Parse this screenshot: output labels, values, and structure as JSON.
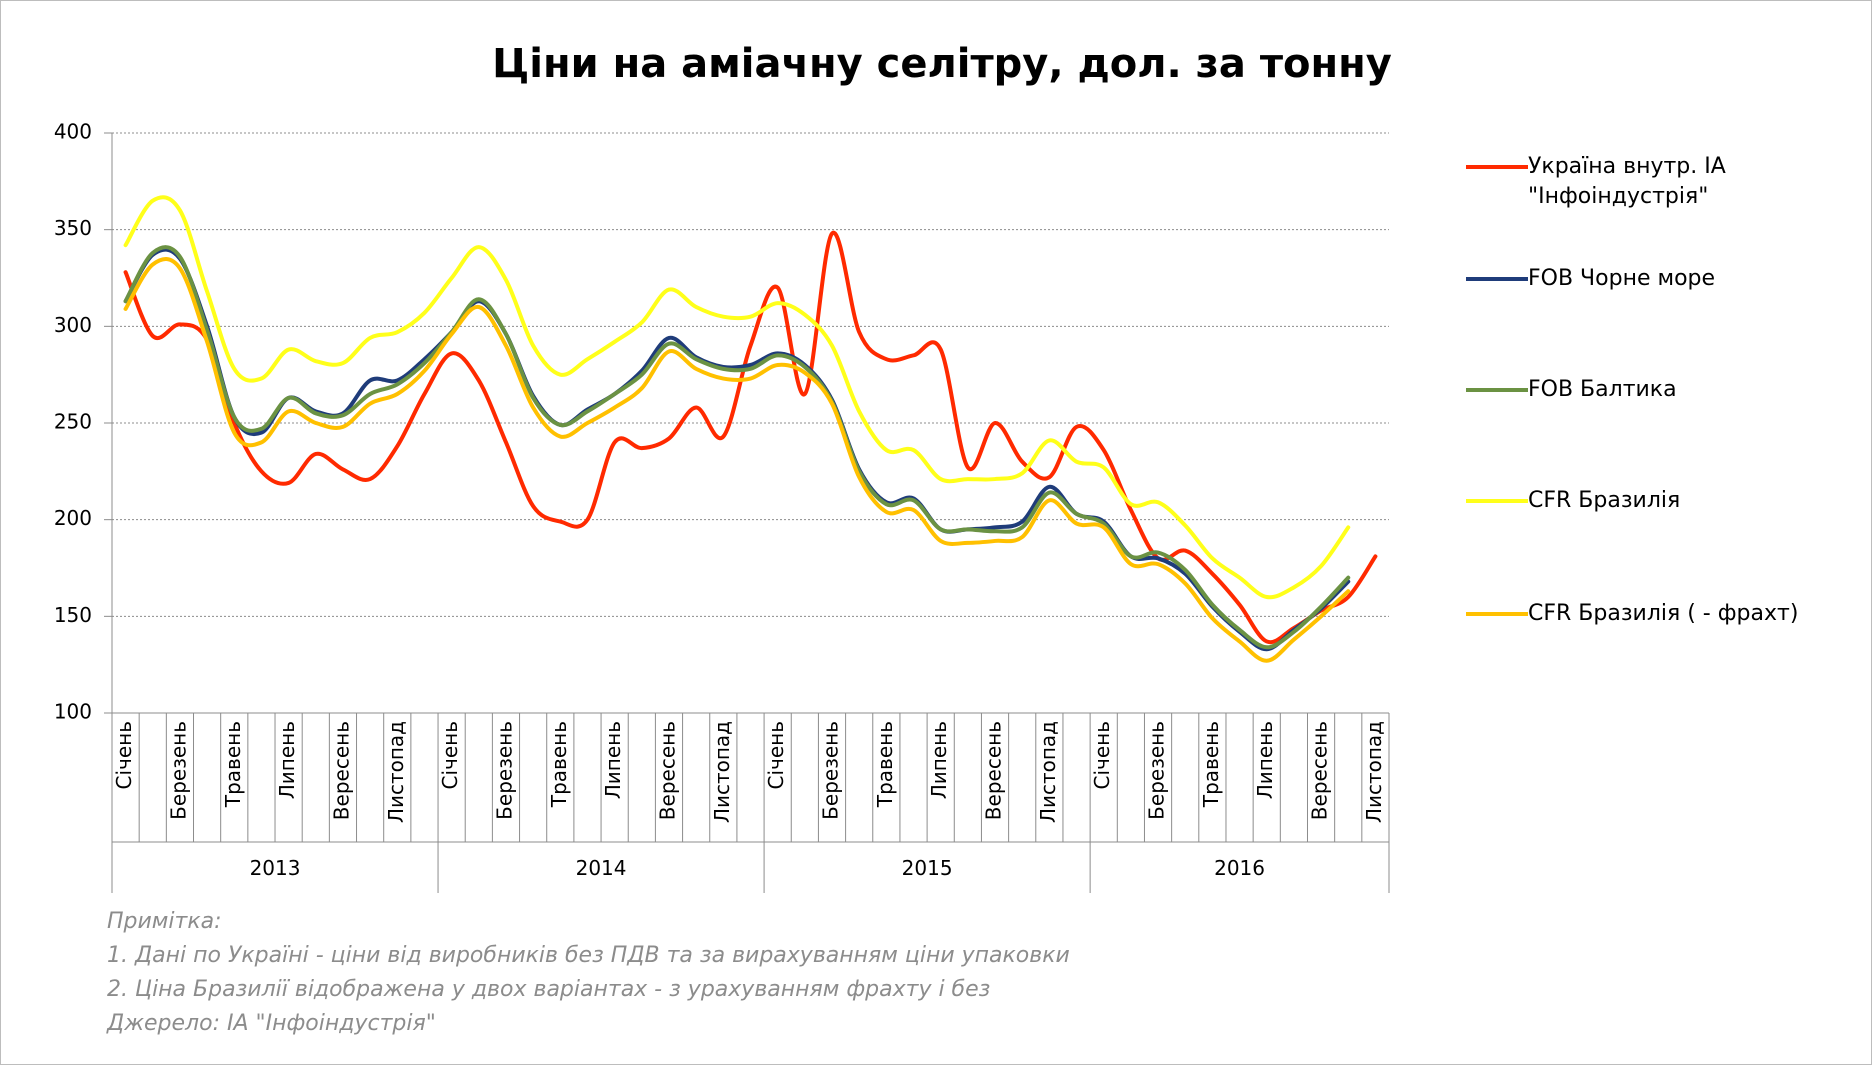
{
  "chart_data": {
    "type": "line",
    "title": "Ціни на аміачну селітру, дол. за тонну",
    "categories": [
      "Січень",
      null,
      "Березень",
      null,
      "Травень",
      null,
      "Липень",
      null,
      "Вересень",
      null,
      "Листопад",
      null,
      "Січень",
      null,
      "Березень",
      null,
      "Травень",
      null,
      "Липень",
      null,
      "Вересень",
      null,
      "Листопад",
      null,
      "Січень",
      null,
      "Березень",
      null,
      "Травень",
      null,
      "Липень",
      null,
      "Вересень",
      null,
      "Листопад",
      null,
      "Січень",
      null,
      "Березень",
      null,
      "Травень",
      null,
      "Липень",
      null,
      "Вересень",
      null,
      "Листопад"
    ],
    "years": [
      "2013",
      "2014",
      "2015",
      "2016"
    ],
    "series": [
      {
        "name": "Україна внутр. ІА \"Інфоіндустрія\"",
        "color": "#ff2a00",
        "values": [
          328,
          295,
          301,
          293,
          250,
          225,
          219,
          234,
          226,
          221,
          238,
          265,
          286,
          272,
          240,
          207,
          199,
          200,
          240,
          237,
          242,
          258,
          243,
          290,
          320,
          265,
          348,
          297,
          283,
          285,
          288,
          227,
          250,
          230,
          222,
          248,
          236,
          205,
          180,
          184,
          172,
          156,
          137,
          144,
          153,
          160,
          181
        ]
      },
      {
        "name": "FOB Чорне море",
        "color": "#1f3c7a",
        "values": [
          313,
          337,
          335,
          300,
          253,
          245,
          263,
          256,
          255,
          272,
          272,
          283,
          297,
          313,
          296,
          264,
          249,
          257,
          265,
          277,
          294,
          284,
          279,
          280,
          286,
          280,
          262,
          226,
          209,
          211,
          195,
          195,
          196,
          199,
          217,
          203,
          199,
          181,
          180,
          172,
          155,
          142,
          133,
          143,
          154,
          168,
          null
        ]
      },
      {
        "name": "FOB Балтика",
        "color": "#6b9243",
        "values": [
          313,
          338,
          336,
          298,
          253,
          247,
          263,
          255,
          254,
          265,
          270,
          281,
          297,
          314,
          296,
          263,
          249,
          256,
          265,
          275,
          291,
          283,
          278,
          278,
          285,
          279,
          261,
          225,
          208,
          210,
          195,
          195,
          194,
          196,
          214,
          203,
          198,
          181,
          183,
          174,
          156,
          143,
          134,
          142,
          155,
          170,
          null
        ]
      },
      {
        "name": "CFR Бразилія",
        "color": "#ffff1a",
        "values": [
          342,
          365,
          360,
          318,
          278,
          273,
          288,
          282,
          281,
          294,
          297,
          307,
          325,
          341,
          324,
          290,
          275,
          283,
          292,
          302,
          319,
          310,
          305,
          305,
          312,
          306,
          290,
          256,
          236,
          236,
          221,
          221,
          221,
          224,
          241,
          230,
          227,
          208,
          209,
          197,
          180,
          170,
          160,
          165,
          176,
          196,
          null
        ]
      },
      {
        "name": "CFR Бразилія ( - фрахт)",
        "color": "#ffc000",
        "values": [
          309,
          332,
          330,
          292,
          245,
          240,
          256,
          250,
          248,
          260,
          265,
          277,
          296,
          310,
          290,
          258,
          243,
          250,
          258,
          268,
          287,
          278,
          273,
          273,
          280,
          276,
          260,
          222,
          204,
          205,
          189,
          188,
          189,
          191,
          210,
          198,
          196,
          177,
          177,
          167,
          149,
          137,
          127,
          138,
          150,
          163,
          null
        ]
      }
    ],
    "ylim": [
      100,
      400
    ],
    "yticks": [
      100,
      150,
      200,
      250,
      300,
      350,
      400
    ],
    "grid": true,
    "notes": [
      "Примітка:",
      "1. Дані по Україні - ціни від виробників без ПДВ та за вирахуванням ціни упаковки",
      "2. Ціна Бразилії відображена у двох варіантах - з урахуванням фрахту і без",
      "Джерело: ІА \"Інфоіндустрія\""
    ]
  }
}
